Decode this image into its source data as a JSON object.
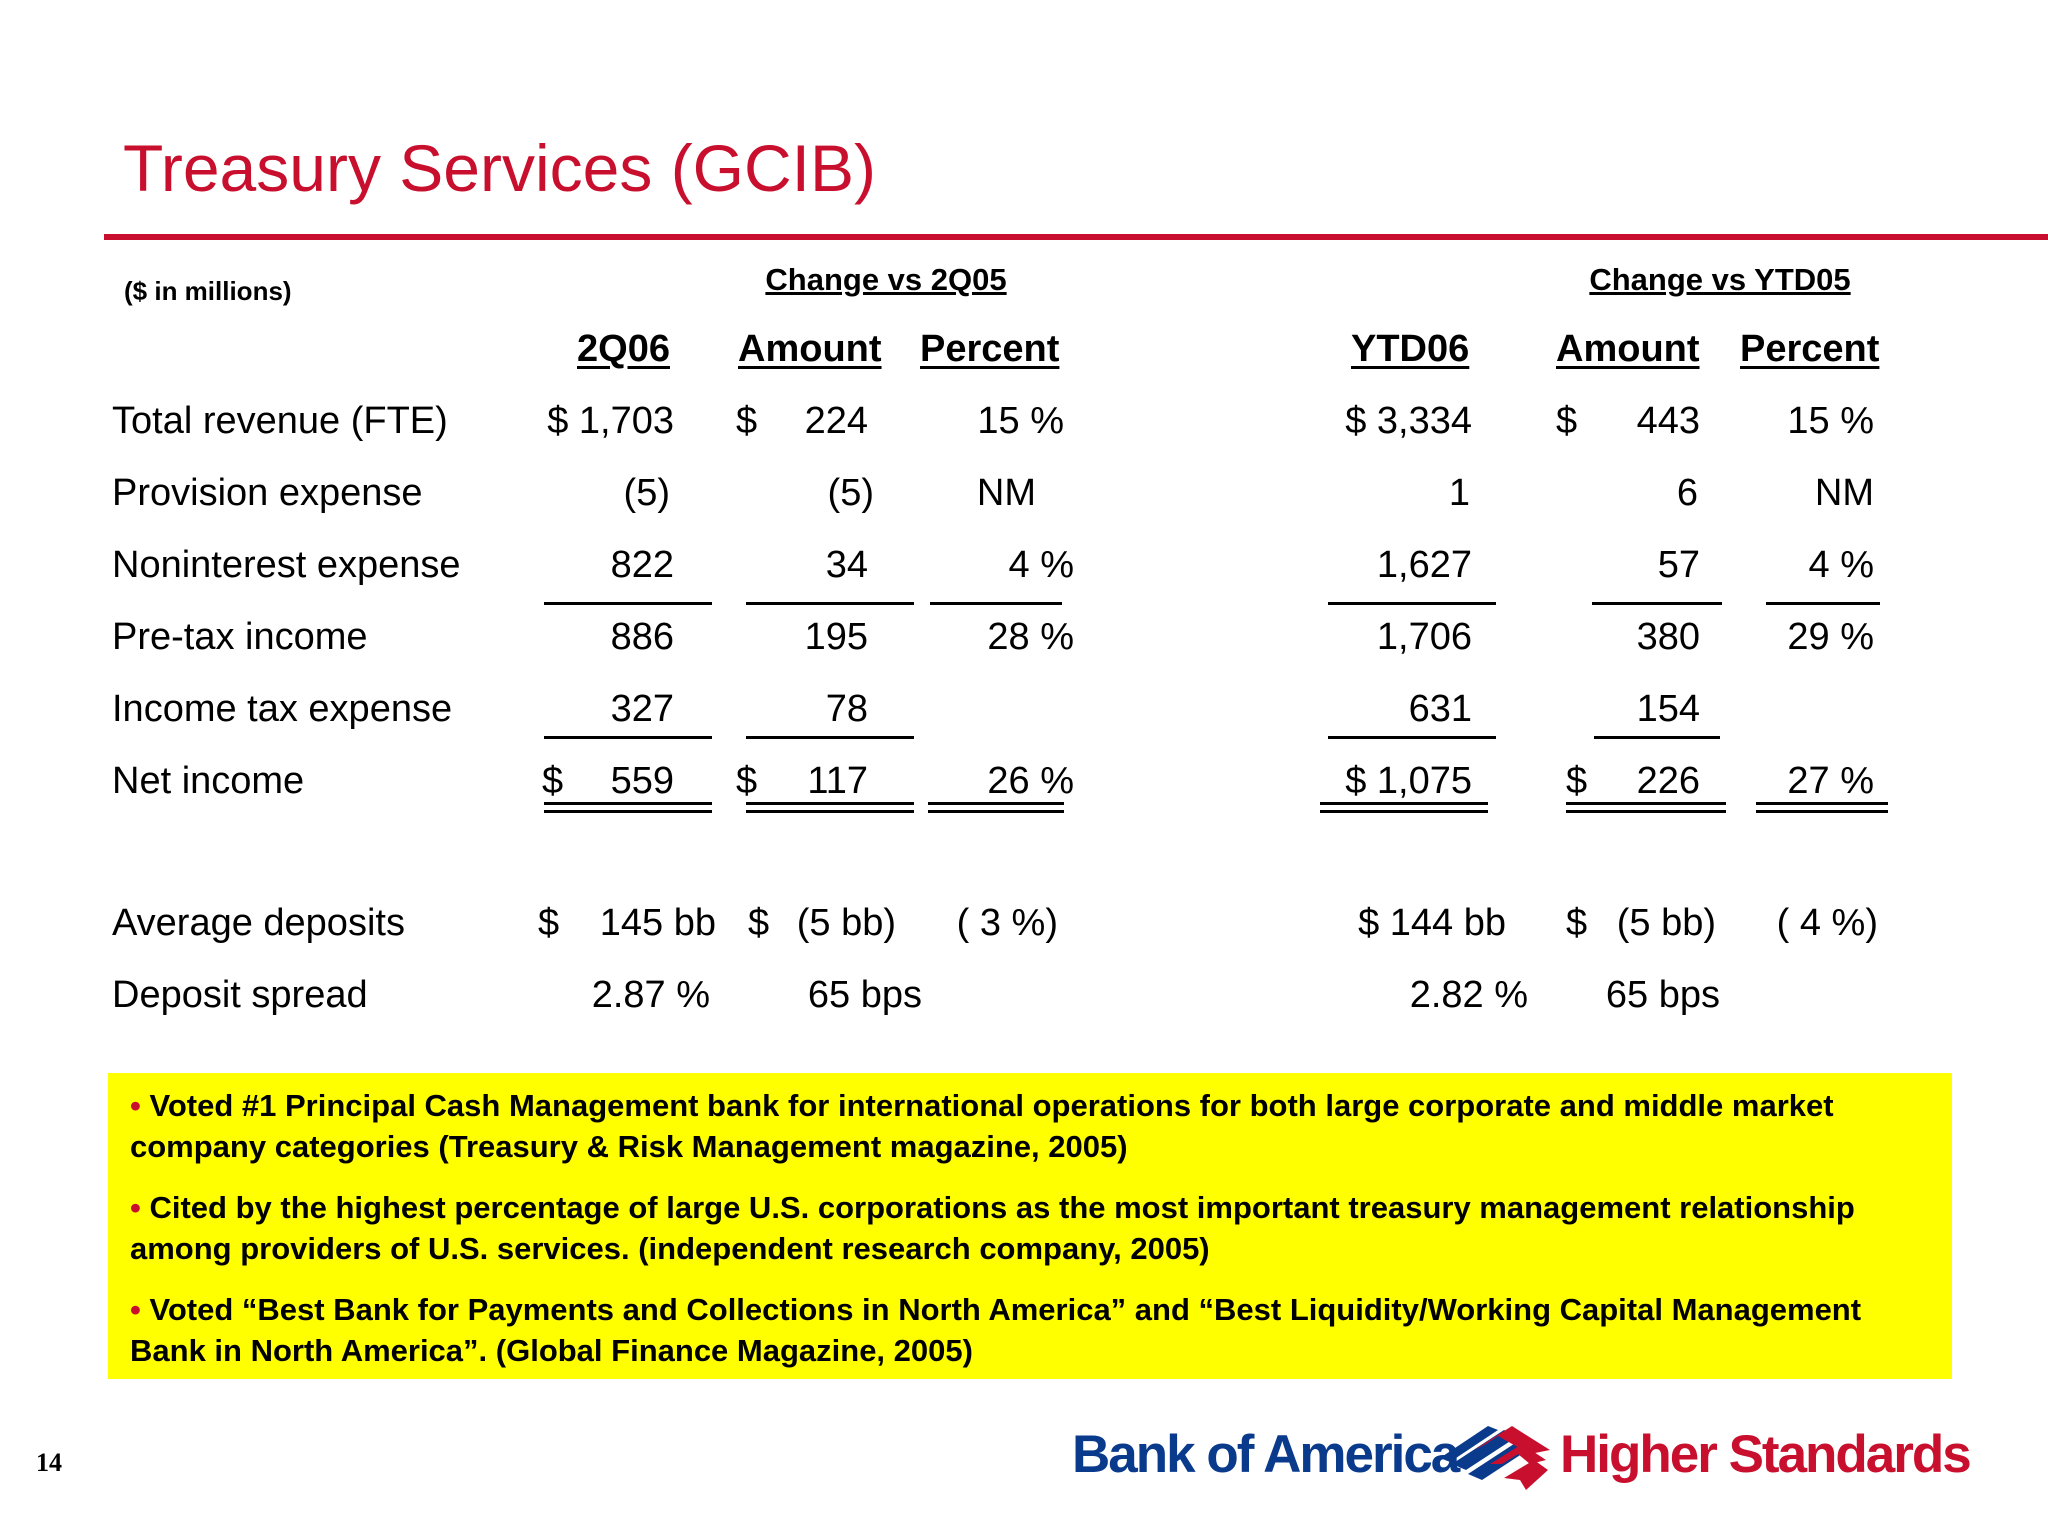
{
  "title": "Treasury Services (GCIB)",
  "units": "($ in millions)",
  "group_headers": {
    "quarter": "Change vs 2Q05",
    "ytd": "Change vs YTD05"
  },
  "column_headers": {
    "q_value": "2Q06",
    "q_amount": "Amount",
    "q_percent": "Percent",
    "y_value": "YTD06",
    "y_amount": "Amount",
    "y_percent": "Percent"
  },
  "currency_symbol": "$",
  "rows": [
    {
      "label": "Total revenue (FTE)",
      "q_value": "$ 1,703",
      "q_amount": "224",
      "q_percent": "15 %",
      "y_value": "$ 3,334",
      "y_amount": "443",
      "y_percent": "15 %"
    },
    {
      "label": "Provision expense",
      "q_value": "(5)",
      "q_amount": "(5)",
      "q_percent": "NM",
      "y_value": "1",
      "y_amount": "6",
      "y_percent": "NM"
    },
    {
      "label": "Noninterest expense",
      "q_value": "822",
      "q_amount": "34",
      "q_percent": "4 %",
      "y_value": "1,627",
      "y_amount": "57",
      "y_percent": "4 %"
    },
    {
      "label": "Pre-tax income",
      "q_value": "886",
      "q_amount": "195",
      "q_percent": "28 %",
      "y_value": "1,706",
      "y_amount": "380",
      "y_percent": "29 %"
    },
    {
      "label": "Income tax expense",
      "q_value": "327",
      "q_amount": "78",
      "q_percent": "",
      "y_value": "631",
      "y_amount": "154",
      "y_percent": ""
    },
    {
      "label": "Net income",
      "q_value": "559",
      "q_amount": "117",
      "q_percent": "26 %",
      "y_value": "$ 1,075",
      "y_amount": "226",
      "y_percent": "27 %"
    },
    {
      "label": "Average deposits",
      "q_value": "145 bb",
      "q_amount": "(5 bb)",
      "q_percent": "( 3 %)",
      "y_value": "$  144 bb",
      "y_amount": "(5 bb)",
      "y_percent": "( 4 %)"
    },
    {
      "label": "Deposit spread",
      "q_value": "2.87 %",
      "q_amount": "65 bps",
      "q_percent": "",
      "y_value": "2.82 %",
      "y_amount": "65 bps",
      "y_percent": ""
    }
  ],
  "highlights": {
    "bullet_glyph": "•",
    "items": [
      "Voted #1 Principal Cash Management bank for international operations for  both large corporate and middle market company categories (Treasury & Risk Management magazine, 2005)",
      "Cited by the highest percentage of large U.S. corporations as the most important treasury management relationship among providers of U.S. services. (independent research company, 2005)",
      "Voted “Best Bank for Payments and Collections in North America” and “Best Liquidity/Working Capital Management Bank in North America”. (Global Finance Magazine, 2005)"
    ]
  },
  "page_number": "14",
  "logo": {
    "bank_name": "Bank of America",
    "tagline": "Higher Standards",
    "colors": {
      "blue": "#0a3a8c",
      "red": "#c8102e"
    }
  },
  "accent_color": "#c8102e",
  "highlight_color": "#ffff00"
}
